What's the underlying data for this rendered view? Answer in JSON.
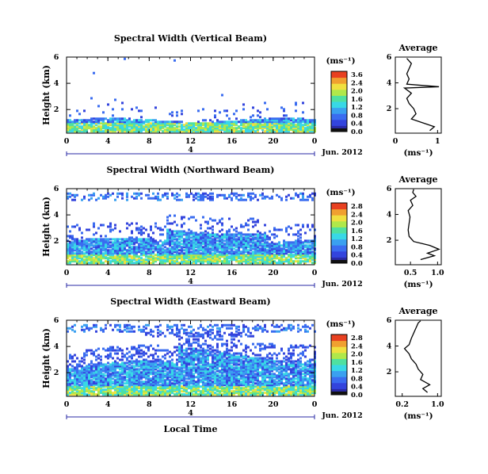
{
  "chart_data": [
    {
      "type": "heatmap",
      "title": "Spectral Width (Vertical Beam)",
      "ylabel": "Height (km)",
      "x_ticks": [
        "0",
        "4",
        "8",
        "12",
        "16",
        "20",
        "0"
      ],
      "y_ticks": [
        "6",
        "4",
        "2"
      ],
      "date_label": "4",
      "date_right": "Jun. 2012",
      "unit": "(ms⁻¹)",
      "colorbar_ticks": [
        "3.6",
        "2.4",
        "2.0",
        "1.6",
        "1.2",
        "0.8",
        "0.4",
        "0.0"
      ],
      "average": {
        "title": "Average",
        "x_ticks": [
          "0",
          "1"
        ],
        "y_ticks": [
          "6",
          "4",
          "2"
        ],
        "xlabel": "(ms⁻¹)",
        "profile": [
          [
            0.75,
            0.3
          ],
          [
            0.85,
            0.6
          ],
          [
            0.6,
            0.9
          ],
          [
            0.35,
            1.2
          ],
          [
            0.45,
            1.6
          ],
          [
            0.4,
            2.0
          ],
          [
            0.3,
            2.4
          ],
          [
            0.25,
            2.8
          ],
          [
            0.35,
            3.2
          ],
          [
            0.2,
            3.6
          ],
          [
            0.95,
            3.7
          ],
          [
            0.25,
            3.9
          ],
          [
            0.3,
            4.3
          ],
          [
            0.25,
            4.7
          ],
          [
            0.3,
            5.1
          ],
          [
            0.35,
            5.5
          ],
          [
            0.25,
            5.9
          ]
        ]
      }
    },
    {
      "type": "heatmap",
      "title": "Spectral Width (Northward Beam)",
      "ylabel": "Height (km)",
      "x_ticks": [
        "0",
        "4",
        "8",
        "12",
        "16",
        "20",
        "0"
      ],
      "y_ticks": [
        "6",
        "4",
        "2"
      ],
      "date_label": "4",
      "date_right": "Jun. 2012",
      "unit": "(ms⁻¹)",
      "colorbar_ticks": [
        "2.8",
        "2.4",
        "2.0",
        "1.6",
        "1.2",
        "0.8",
        "0.4",
        "0.0"
      ],
      "average": {
        "title": "Average",
        "x_ticks": [
          "0.5",
          "1.0"
        ],
        "y_ticks": [
          "6",
          "4",
          "2"
        ],
        "xlabel": "(ms⁻¹)",
        "profile": [
          [
            0.55,
            0.5
          ],
          [
            0.85,
            0.8
          ],
          [
            0.7,
            1.0
          ],
          [
            0.95,
            1.3
          ],
          [
            0.75,
            1.6
          ],
          [
            0.4,
            1.9
          ],
          [
            0.3,
            2.3
          ],
          [
            0.28,
            2.8
          ],
          [
            0.3,
            3.3
          ],
          [
            0.32,
            3.8
          ],
          [
            0.28,
            4.3
          ],
          [
            0.38,
            4.7
          ],
          [
            0.33,
            5.1
          ],
          [
            0.45,
            5.4
          ],
          [
            0.38,
            5.7
          ],
          [
            0.4,
            5.95
          ]
        ]
      }
    },
    {
      "type": "heatmap",
      "title": "Spectral Width (Eastward Beam)",
      "ylabel": "Height (km)",
      "x_ticks": [
        "0",
        "4",
        "8",
        "12",
        "16",
        "20",
        "0"
      ],
      "y_ticks": [
        "6",
        "4",
        "2"
      ],
      "date_label": "4",
      "date_right": "Jun. 2012",
      "unit": "(ms⁻¹)",
      "xlabel": "Local Time",
      "colorbar_ticks": [
        "2.8",
        "2.4",
        "2.0",
        "1.6",
        "1.2",
        "0.8",
        "0.4",
        "0.0"
      ],
      "average": {
        "title": "Average",
        "x_ticks": [
          "0.2",
          "1.0"
        ],
        "y_ticks": [
          "6",
          "4",
          "2"
        ],
        "xlabel": "(ms⁻¹)",
        "profile": [
          [
            0.7,
            0.4
          ],
          [
            0.6,
            0.7
          ],
          [
            0.75,
            1.0
          ],
          [
            0.55,
            1.4
          ],
          [
            0.6,
            1.8
          ],
          [
            0.5,
            2.2
          ],
          [
            0.45,
            2.6
          ],
          [
            0.35,
            3.0
          ],
          [
            0.3,
            3.4
          ],
          [
            0.2,
            3.8
          ],
          [
            0.3,
            4.1
          ],
          [
            0.35,
            4.6
          ],
          [
            0.4,
            5.0
          ],
          [
            0.45,
            5.4
          ],
          [
            0.5,
            5.8
          ],
          [
            0.55,
            5.95
          ]
        ]
      }
    }
  ]
}
